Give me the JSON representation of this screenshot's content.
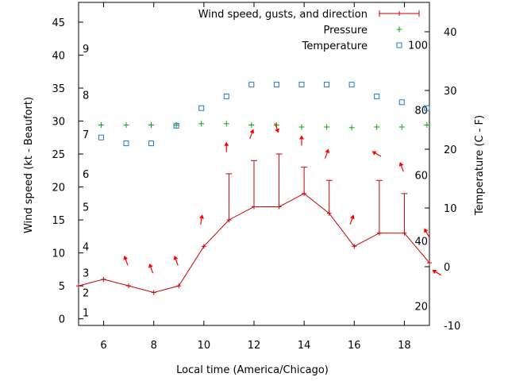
{
  "chart_data": {
    "type": "line",
    "xlabel": "Local time (America/Chicago)",
    "ylabel": "Wind speed (kt - Beaufort)",
    "y2label": "Temperature (C - F)",
    "xlim": [
      5,
      19
    ],
    "ylim": [
      -1,
      48
    ],
    "y2lim": [
      -10,
      45
    ],
    "x_ticks": [
      6,
      8,
      10,
      12,
      14,
      16,
      18
    ],
    "y_ticks": [
      0,
      5,
      10,
      15,
      20,
      25,
      30,
      35,
      40,
      45
    ],
    "y2_ticks": [
      -10,
      0,
      10,
      20,
      30,
      40
    ],
    "beaufort_labels": [
      {
        "label": "1",
        "y": 1
      },
      {
        "label": "2",
        "y": 4
      },
      {
        "label": "3",
        "y": 7
      },
      {
        "label": "4",
        "y": 11
      },
      {
        "label": "5",
        "y": 17
      },
      {
        "label": "6",
        "y": 22
      },
      {
        "label": "7",
        "y": 28
      },
      {
        "label": "8",
        "y": 34
      },
      {
        "label": "9",
        "y": 41
      }
    ],
    "fahrenheit_labels": [
      {
        "label": "20",
        "t": -6.7
      },
      {
        "label": "40",
        "t": 4.4
      },
      {
        "label": "60",
        "t": 15.6
      },
      {
        "label": "80",
        "t": 26.7
      },
      {
        "label": "100",
        "t": 37.8
      }
    ],
    "legend_position": "top-right",
    "colors": {
      "wind": "#cc0000",
      "pressure": "#00aa00",
      "temperature": "#1e78c8",
      "arrow": "#ff0000"
    },
    "series": [
      {
        "name": "Wind speed, gusts, and direction",
        "x": [
          5,
          6,
          7,
          8,
          9,
          10,
          11,
          12,
          13,
          14,
          15,
          16,
          17,
          18,
          19
        ],
        "values": [
          5,
          6,
          5,
          4,
          5,
          11,
          15,
          17,
          17,
          19,
          16,
          11,
          13,
          13,
          8.5
        ],
        "gusts": [
          null,
          null,
          null,
          null,
          null,
          null,
          22,
          24,
          25,
          23,
          21,
          null,
          21,
          19,
          null
        ],
        "arrows": [
          {
            "x": 6.9,
            "y": 8.8,
            "angle": 340
          },
          {
            "x": 7.9,
            "y": 7.6,
            "angle": 340
          },
          {
            "x": 8.9,
            "y": 8.8,
            "angle": 340
          },
          {
            "x": 9.9,
            "y": 15.0,
            "angle": 10
          },
          {
            "x": 10.9,
            "y": 26.0,
            "angle": 0
          },
          {
            "x": 11.9,
            "y": 28.0,
            "angle": 20
          },
          {
            "x": 12.9,
            "y": 29.0,
            "angle": 160
          },
          {
            "x": 13.9,
            "y": 27.0,
            "angle": 0
          },
          {
            "x": 14.9,
            "y": 25.0,
            "angle": 20
          },
          {
            "x": 15.9,
            "y": 15.0,
            "angle": 20
          },
          {
            "x": 16.9,
            "y": 25.0,
            "angle": 300
          },
          {
            "x": 17.9,
            "y": 23.0,
            "angle": 340
          },
          {
            "x": 18.9,
            "y": 13.0,
            "angle": 330
          },
          {
            "x": 19.3,
            "y": 7.0,
            "angle": 300
          }
        ]
      },
      {
        "name": "Pressure",
        "x": [
          5.9,
          6.9,
          7.9,
          8.9,
          9.9,
          10.9,
          11.9,
          12.9,
          13.9,
          14.9,
          15.9,
          16.9,
          17.9,
          18.9
        ],
        "values": [
          29.4,
          29.4,
          29.4,
          29.4,
          29.6,
          29.6,
          29.4,
          29.4,
          29.1,
          29.1,
          29.0,
          29.1,
          29.1,
          29.4
        ]
      },
      {
        "name": "Temperature",
        "x": [
          5.9,
          6.9,
          7.9,
          8.9,
          9.9,
          10.9,
          11.9,
          12.9,
          13.9,
          14.9,
          15.9,
          16.9,
          17.9,
          18.9
        ],
        "values": [
          22,
          21,
          21,
          24,
          27,
          29,
          31,
          31,
          31,
          31,
          31,
          29,
          28,
          27
        ]
      }
    ]
  }
}
